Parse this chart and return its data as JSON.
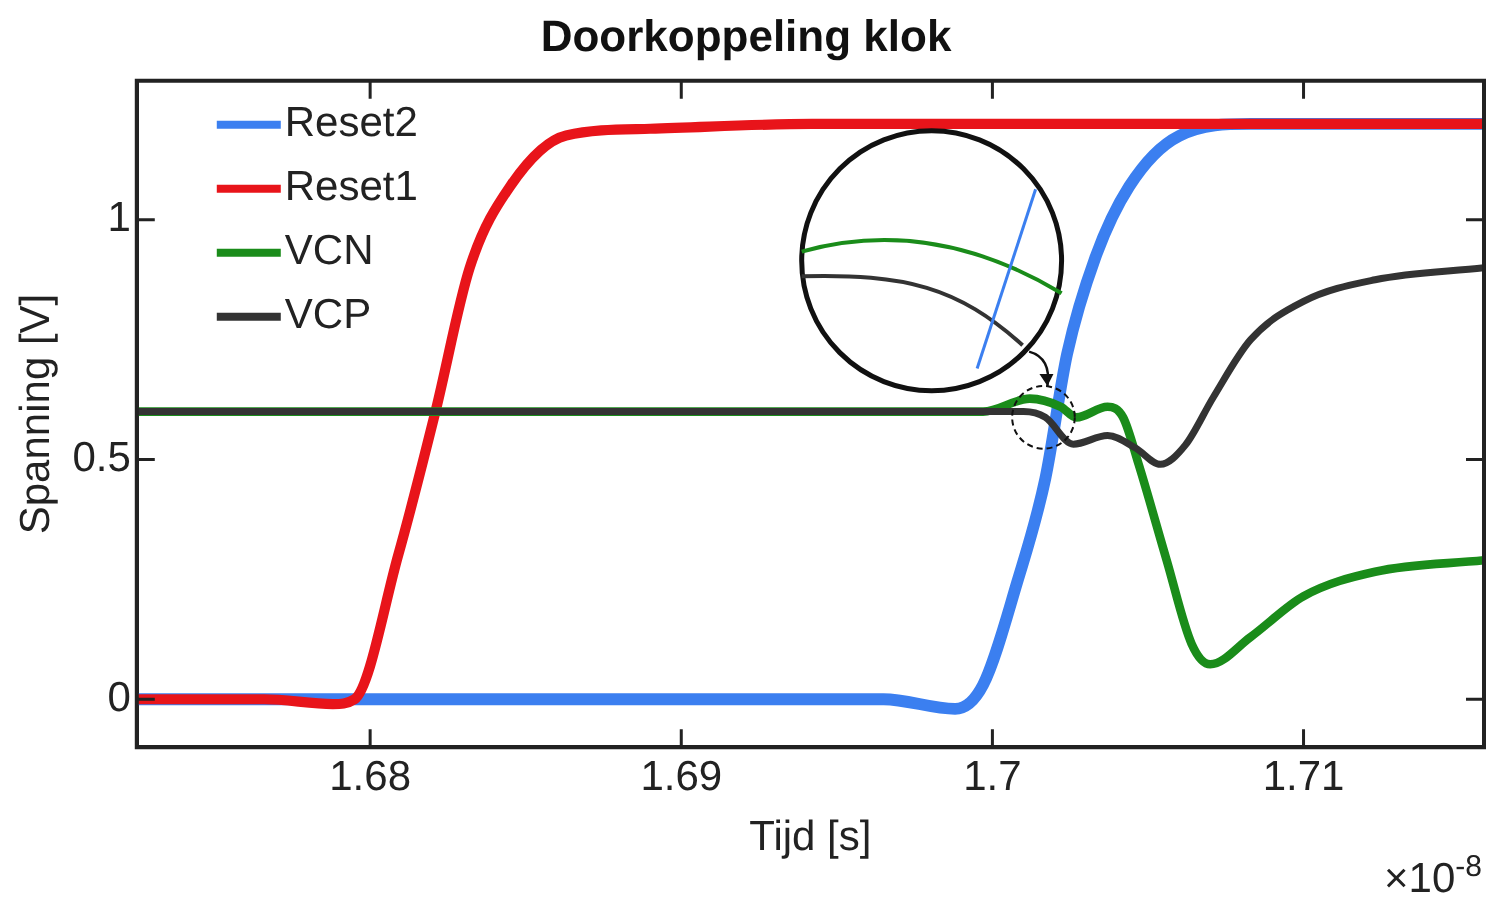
{
  "chart_data": {
    "type": "line",
    "title": "Doorkoppeling klok",
    "xlabel": "Tijd [s]",
    "ylabel": "Spanning [V]",
    "annotations": [
      "×10$^{-8}$"
    ],
    "xlim": [
      1.6725,
      1.7158
    ],
    "xticks": [
      1.68,
      1.69,
      {
        "value": 1.7,
        "label": "1.7"
      },
      1.71
    ],
    "ylim": [
      -0.1,
      1.29
    ],
    "yticks": [
      0,
      0.5,
      1
    ],
    "grid": false,
    "legend": "top left",
    "marker": "none",
    "line_style": "solid",
    "series": [
      {
        "name": "Reset2",
        "color": "#3b7ff0",
        "x": [
          1.6725,
          1.6965,
          1.6988,
          1.6997,
          1.7008,
          1.7017,
          1.7024,
          1.7033,
          1.7044,
          1.706,
          1.7083,
          1.7158
        ],
        "values": [
          0,
          0,
          -0.02,
          0.03,
          0.245,
          0.46,
          0.72,
          0.92,
          1.07,
          1.175,
          1.2,
          1.2
        ]
      },
      {
        "name": "Reset1",
        "color": "#e8141a",
        "x": [
          1.6725,
          1.6766,
          1.6788,
          1.6795,
          1.6809,
          1.6821,
          1.6832,
          1.6845,
          1.6863,
          1.689,
          1.6942,
          1.7158
        ],
        "values": [
          0,
          0,
          -0.01,
          0,
          0.3,
          0.6,
          0.9,
          1.07,
          1.176,
          1.19,
          1.2,
          1.2
        ]
      },
      {
        "name": "VCN",
        "color": "#1a8c1a",
        "x": [
          1.6725,
          1.6997,
          1.7012,
          1.7022,
          1.7027,
          1.7037,
          1.7042,
          1.7047,
          1.7056,
          1.7064,
          1.707,
          1.7083,
          1.71,
          1.7123,
          1.7158
        ],
        "values": [
          0.6,
          0.6,
          0.627,
          0.61,
          0.588,
          0.61,
          0.588,
          0.49,
          0.29,
          0.116,
          0.073,
          0.13,
          0.215,
          0.266,
          0.29
        ]
      },
      {
        "name": "VCP",
        "color": "#333333",
        "x": [
          1.6725,
          1.701,
          1.7017,
          1.7026,
          1.7037,
          1.7046,
          1.7054,
          1.7062,
          1.7071,
          1.7083,
          1.71,
          1.7123,
          1.7158
        ],
        "values": [
          0.6,
          0.6,
          0.588,
          0.532,
          0.55,
          0.524,
          0.49,
          0.53,
          0.63,
          0.75,
          0.83,
          0.875,
          0.9
        ]
      }
    ]
  }
}
